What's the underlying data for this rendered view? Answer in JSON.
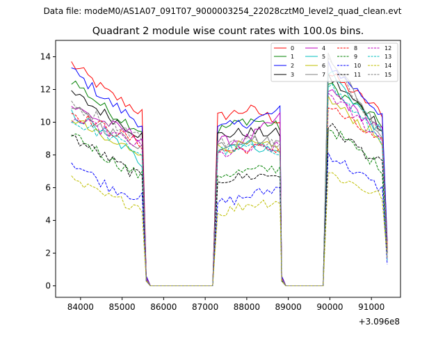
{
  "chart_data": {
    "type": "line",
    "suptitle": "Data file: modeM0/AS1A07_091T07_9000003254_22028cztM0_level2_quad_clean.evt",
    "title": "Quadrant 2 module wise count rates with 100.0s bins.",
    "xlabel": "",
    "ylabel": "",
    "x_offset_label": "+3.096e8",
    "xlim": [
      83400,
      91700
    ],
    "ylim": [
      -0.7,
      15
    ],
    "x_ticks": [
      84000,
      85000,
      86000,
      87000,
      88000,
      89000,
      90000,
      91000
    ],
    "x_tick_labels": [
      "84000",
      "85000",
      "86000",
      "87000",
      "88000",
      "89000",
      "90000",
      "91000"
    ],
    "y_ticks": [
      0,
      2,
      4,
      6,
      8,
      10,
      12,
      14
    ],
    "y_tick_labels": [
      "0",
      "2",
      "4",
      "6",
      "8",
      "10",
      "12",
      "14"
    ],
    "legend_position": "top-right",
    "segments": [
      {
        "x_start": 83780,
        "x_end": 85530,
        "step": 100
      },
      {
        "x_start": 85580,
        "x_end": 85580,
        "step": 100
      },
      {
        "x_start": 85680,
        "x_end": 87230,
        "step": 100
      },
      {
        "x_start": 87300,
        "x_end": 88800,
        "step": 100
      },
      {
        "x_start": 88840,
        "x_end": 88840,
        "step": 100
      },
      {
        "x_start": 88940,
        "x_end": 89890,
        "step": 100
      },
      {
        "x_start": 89960,
        "x_end": 91300,
        "step": 100
      },
      {
        "x_start": 91380,
        "x_end": 91380,
        "step": 100
      }
    ],
    "series": [
      {
        "name": "0",
        "color": "#ff0000",
        "dash": "solid",
        "levels": [
          13.6,
          11.8,
          10.5,
          0.6,
          0,
          0,
          10.3,
          10.8,
          10.1,
          0.6,
          0,
          0,
          13.0,
          10.5,
          2.5
        ]
      },
      {
        "name": "1",
        "color": "#008000",
        "dash": "solid",
        "levels": [
          12.6,
          10.7,
          9.4,
          0.5,
          0,
          0,
          9.5,
          10.2,
          9.7,
          0.5,
          0,
          0,
          12.3,
          9.8,
          2.2
        ]
      },
      {
        "name": "2",
        "color": "#0000ff",
        "dash": "solid",
        "levels": [
          13.2,
          11.3,
          9.8,
          0.6,
          0,
          0,
          9.6,
          10.0,
          10.7,
          0.6,
          0,
          0,
          13.6,
          10.4,
          2.4
        ]
      },
      {
        "name": "3",
        "color": "#000000",
        "dash": "solid",
        "levels": [
          11.8,
          10.4,
          9.1,
          0.5,
          0,
          0,
          9.2,
          9.4,
          9.3,
          0.5,
          0,
          0,
          12.8,
          9.6,
          2.2
        ]
      },
      {
        "name": "4",
        "color": "#bf00bf",
        "dash": "solid",
        "levels": [
          11.0,
          9.9,
          9.0,
          0.5,
          0,
          0,
          8.8,
          9.0,
          10.3,
          0.5,
          0,
          0,
          12.0,
          9.3,
          2.1
        ]
      },
      {
        "name": "5",
        "color": "#00bfbf",
        "dash": "solid",
        "levels": [
          10.5,
          9.3,
          7.4,
          0.4,
          0,
          0,
          8.5,
          8.7,
          8.1,
          0.4,
          0,
          0,
          13.2,
          9.1,
          2.0
        ]
      },
      {
        "name": "6",
        "color": "#bfbf00",
        "dash": "solid",
        "levels": [
          10.3,
          8.8,
          8.2,
          0.4,
          0,
          0,
          8.4,
          8.6,
          8.4,
          0.4,
          0,
          0,
          11.4,
          8.8,
          1.9
        ]
      },
      {
        "name": "7",
        "color": "#808080",
        "dash": "solid",
        "levels": [
          10.9,
          9.5,
          8.5,
          0.4,
          0,
          0,
          8.6,
          9.0,
          8.7,
          0.4,
          0,
          0,
          14.3,
          9.0,
          2.0
        ]
      },
      {
        "name": "8",
        "color": "#ff0000",
        "dash": "dashed",
        "levels": [
          10.6,
          9.6,
          8.6,
          0.4,
          0,
          0,
          8.2,
          8.4,
          8.4,
          0.4,
          0,
          0,
          11.0,
          8.6,
          1.9
        ]
      },
      {
        "name": "9",
        "color": "#008000",
        "dash": "dashed",
        "levels": [
          9.4,
          7.8,
          6.6,
          0.3,
          0,
          0,
          6.8,
          7.0,
          7.2,
          0.3,
          0,
          0,
          9.7,
          7.1,
          1.7
        ]
      },
      {
        "name": "10",
        "color": "#0000ff",
        "dash": "dashed",
        "levels": [
          7.6,
          6.1,
          5.3,
          0.3,
          0,
          0,
          5.0,
          5.5,
          6.0,
          0.3,
          0,
          0,
          8.1,
          5.8,
          1.6
        ]
      },
      {
        "name": "11",
        "color": "#000000",
        "dash": "dashed",
        "levels": [
          9.1,
          7.8,
          6.5,
          0.3,
          0,
          0,
          6.5,
          6.7,
          6.8,
          0.3,
          0,
          0,
          9.8,
          7.3,
          1.8
        ]
      },
      {
        "name": "12",
        "color": "#bf00bf",
        "dash": "dashed",
        "levels": [
          10.2,
          9.4,
          8.4,
          0.4,
          0,
          0,
          8.0,
          8.3,
          8.5,
          0.4,
          0,
          0,
          11.8,
          8.8,
          1.9
        ]
      },
      {
        "name": "13",
        "color": "#00bfbf",
        "dash": "dashed",
        "levels": [
          10.0,
          9.2,
          8.0,
          0.4,
          0,
          0,
          8.2,
          8.5,
          8.3,
          0.4,
          0,
          0,
          12.4,
          8.7,
          1.9
        ]
      },
      {
        "name": "14",
        "color": "#bfbf00",
        "dash": "dashed",
        "levels": [
          6.4,
          5.4,
          4.8,
          0.3,
          0,
          0,
          4.4,
          5.0,
          5.2,
          0.3,
          0,
          0,
          6.9,
          5.4,
          1.6
        ]
      },
      {
        "name": "15",
        "color": "#808080",
        "dash": "dashed",
        "levels": [
          11.0,
          10.1,
          9.0,
          0.4,
          0,
          0,
          8.7,
          9.0,
          8.6,
          0.4,
          0,
          0,
          13.8,
          9.2,
          2.0
        ]
      }
    ]
  }
}
